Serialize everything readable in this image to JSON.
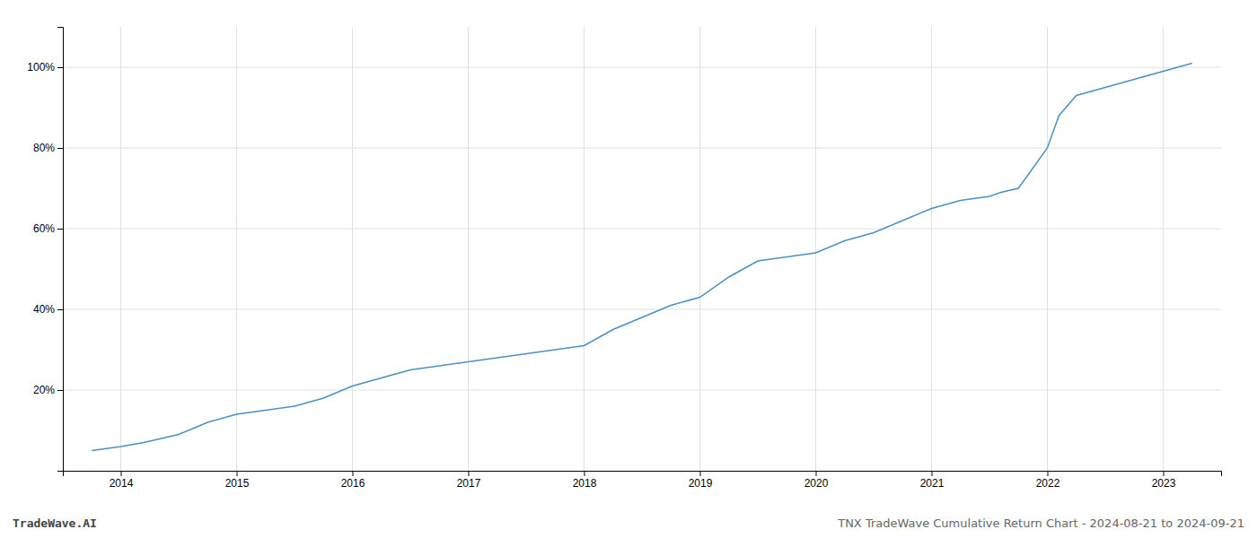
{
  "chart_data": {
    "type": "line",
    "x": [
      2013.75,
      2014.0,
      2014.2,
      2014.5,
      2014.75,
      2015.0,
      2015.25,
      2015.5,
      2015.75,
      2016.0,
      2016.25,
      2016.5,
      2016.75,
      2017.0,
      2017.25,
      2017.5,
      2017.75,
      2018.0,
      2018.25,
      2018.5,
      2018.75,
      2019.0,
      2019.25,
      2019.5,
      2019.75,
      2020.0,
      2020.25,
      2020.5,
      2020.75,
      2021.0,
      2021.25,
      2021.5,
      2021.6,
      2021.75,
      2022.0,
      2022.1,
      2022.25,
      2022.5,
      2022.75,
      2023.0,
      2023.25
    ],
    "values": [
      5,
      6,
      7,
      9,
      12,
      14,
      15,
      16,
      18,
      21,
      23,
      25,
      26,
      27,
      28,
      29,
      30,
      31,
      35,
      38,
      41,
      43,
      48,
      52,
      53,
      54,
      57,
      59,
      62,
      65,
      67,
      68,
      69,
      70,
      80,
      88,
      93,
      95,
      97,
      99,
      101
    ],
    "color": "#4a90c4",
    "xlim": [
      2013.5,
      2023.5
    ],
    "xticks": [
      2014,
      2015,
      2016,
      2017,
      2018,
      2019,
      2020,
      2021,
      2022,
      2023
    ],
    "ylim": [
      0,
      110
    ],
    "yticks": [
      {
        "value": 20,
        "label": "20%"
      },
      {
        "value": 40,
        "label": "40%"
      },
      {
        "value": 60,
        "label": "60%"
      },
      {
        "value": 80,
        "label": "80%"
      },
      {
        "value": 100,
        "label": "100%"
      }
    ],
    "grid": true,
    "annotations": [
      "TradeWave.AI",
      "TNX TradeWave Cumulative Return Chart - 2024-08-21 to 2024-09-21"
    ]
  }
}
